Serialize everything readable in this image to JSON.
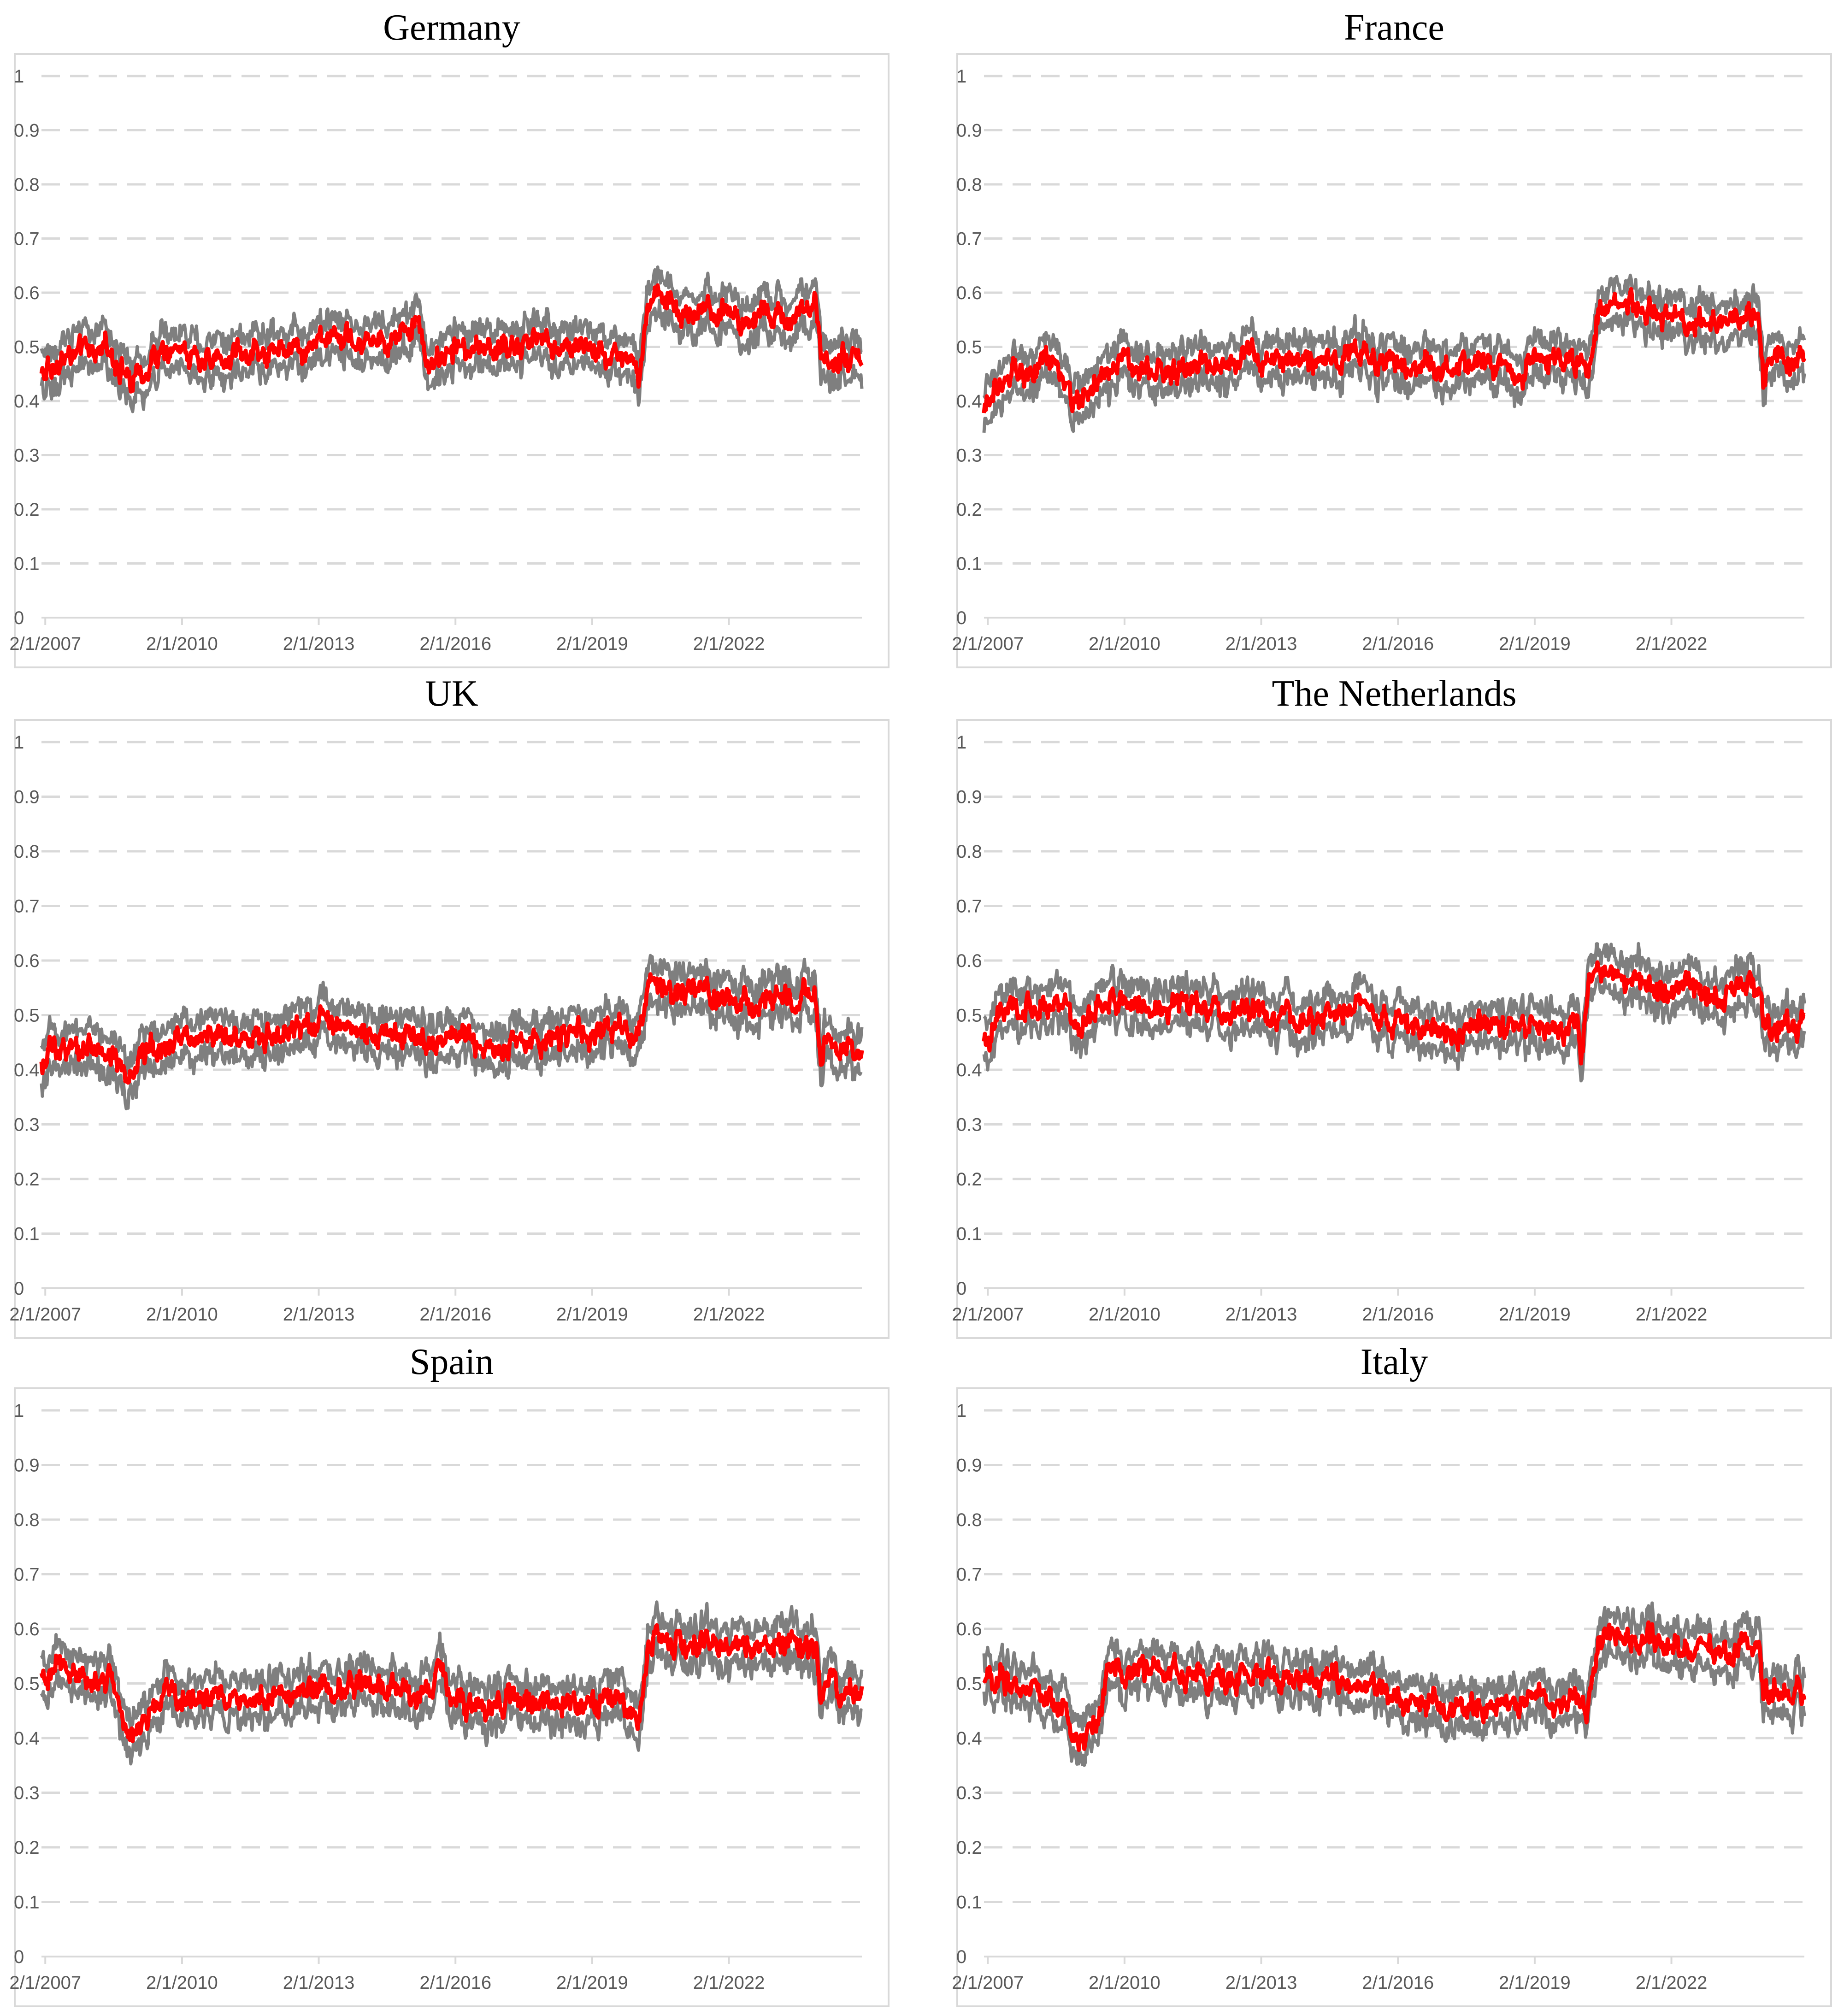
{
  "colors": {
    "band": "#7f7f7f",
    "mean": "#ff0000",
    "grid": "#d9d9d9",
    "tick": "#595959"
  },
  "chart_data": [
    {
      "type": "line",
      "title": "Germany",
      "y_ticks": [
        "0",
        "0.1",
        "0.2",
        "0.3",
        "0.4",
        "0.5",
        "0.6",
        "0.7",
        "0.8",
        "0.9",
        "1"
      ],
      "x_ticks": [
        "2/1/2007",
        "2/1/2010",
        "2/1/2013",
        "2/1/2016",
        "2/1/2019",
        "2/1/2022"
      ],
      "x_range": [
        2007.0,
        2025.0
      ],
      "ylim": [
        0,
        1
      ],
      "grid": "horizontal dashed",
      "series": [
        {
          "x": [
            2007.0,
            2007.5,
            2008.0,
            2008.5,
            2009.0,
            2009.5,
            2010.0,
            2010.5,
            2011.0,
            2011.5,
            2012.0,
            2012.5,
            2013.0,
            2013.5,
            2014.0,
            2014.5,
            2015.0,
            2015.2,
            2015.5,
            2016.0,
            2016.5,
            2017.0,
            2017.5,
            2018.0,
            2018.5,
            2019.0,
            2019.5,
            2020.0,
            2020.1,
            2020.3,
            2020.6,
            2021.0,
            2021.5,
            2022.0,
            2022.5,
            2023.0,
            2023.5,
            2024.0,
            2024.1,
            2024.2,
            2024.5,
            2025.0
          ],
          "values": [
            0.45,
            0.48,
            0.49,
            0.5,
            0.43,
            0.48,
            0.49,
            0.48,
            0.48,
            0.49,
            0.49,
            0.5,
            0.51,
            0.52,
            0.51,
            0.52,
            0.53,
            0.55,
            0.47,
            0.5,
            0.49,
            0.5,
            0.5,
            0.51,
            0.5,
            0.5,
            0.49,
            0.47,
            0.44,
            0.56,
            0.58,
            0.57,
            0.57,
            0.56,
            0.55,
            0.56,
            0.56,
            0.57,
            0.49,
            0.48,
            0.48,
            0.48
          ]
        }
      ]
    },
    {
      "type": "line",
      "title": "France",
      "y_ticks": [
        "0",
        "0.1",
        "0.2",
        "0.3",
        "0.4",
        "0.5",
        "0.6",
        "0.7",
        "0.8",
        "0.9",
        "1"
      ],
      "x_ticks": [
        "2/1/2007",
        "2/1/2010",
        "2/1/2013",
        "2/1/2016",
        "2/1/2019",
        "2/1/2022"
      ],
      "x_range": [
        2007.0,
        2025.0
      ],
      "ylim": [
        0,
        1
      ],
      "grid": "horizontal dashed",
      "series": [
        {
          "x": [
            2007.0,
            2007.3,
            2007.7,
            2008.0,
            2008.5,
            2009.0,
            2009.3,
            2009.7,
            2010.0,
            2010.5,
            2011.0,
            2011.5,
            2012.0,
            2012.5,
            2013.0,
            2013.5,
            2014.0,
            2014.5,
            2015.0,
            2015.3,
            2015.6,
            2016.0,
            2016.5,
            2017.0,
            2017.5,
            2018.0,
            2018.5,
            2019.0,
            2019.5,
            2020.0,
            2020.2,
            2020.5,
            2021.0,
            2021.5,
            2022.0,
            2022.5,
            2023.0,
            2023.5,
            2024.0,
            2024.1,
            2024.2,
            2024.5,
            2025.0
          ],
          "values": [
            0.38,
            0.43,
            0.45,
            0.45,
            0.47,
            0.39,
            0.42,
            0.46,
            0.47,
            0.46,
            0.45,
            0.46,
            0.46,
            0.47,
            0.48,
            0.47,
            0.47,
            0.48,
            0.48,
            0.5,
            0.46,
            0.47,
            0.46,
            0.46,
            0.47,
            0.47,
            0.46,
            0.47,
            0.48,
            0.46,
            0.45,
            0.58,
            0.58,
            0.57,
            0.56,
            0.55,
            0.55,
            0.55,
            0.56,
            0.43,
            0.48,
            0.48,
            0.48
          ]
        }
      ]
    },
    {
      "type": "line",
      "title": "UK",
      "y_ticks": [
        "0",
        "0.1",
        "0.2",
        "0.3",
        "0.4",
        "0.5",
        "0.6",
        "0.7",
        "0.8",
        "0.9",
        "1"
      ],
      "x_ticks": [
        "2/1/2007",
        "2/1/2010",
        "2/1/2013",
        "2/1/2016",
        "2/1/2019",
        "2/1/2022"
      ],
      "x_range": [
        2007.0,
        2025.0
      ],
      "ylim": [
        0,
        1
      ],
      "grid": "horizontal dashed",
      "series": [
        {
          "x": [
            2007.0,
            2007.3,
            2008.0,
            2008.5,
            2008.9,
            2009.3,
            2010.0,
            2010.5,
            2011.0,
            2011.5,
            2012.0,
            2012.5,
            2013.0,
            2013.5,
            2014.0,
            2014.5,
            2015.0,
            2015.5,
            2016.0,
            2016.5,
            2017.0,
            2017.5,
            2018.0,
            2018.5,
            2019.0,
            2019.5,
            2020.0,
            2020.1,
            2020.3,
            2020.6,
            2021.0,
            2021.5,
            2022.0,
            2022.5,
            2023.0,
            2023.5,
            2024.0,
            2024.1,
            2024.2,
            2024.5,
            2025.0
          ],
          "values": [
            0.4,
            0.44,
            0.44,
            0.44,
            0.38,
            0.43,
            0.46,
            0.46,
            0.46,
            0.46,
            0.46,
            0.47,
            0.48,
            0.47,
            0.47,
            0.47,
            0.45,
            0.46,
            0.46,
            0.45,
            0.44,
            0.45,
            0.45,
            0.46,
            0.47,
            0.47,
            0.47,
            0.45,
            0.55,
            0.56,
            0.55,
            0.54,
            0.53,
            0.52,
            0.53,
            0.53,
            0.53,
            0.41,
            0.46,
            0.44,
            0.43
          ]
        }
      ]
    },
    {
      "type": "line",
      "title": "The Netherlands",
      "y_ticks": [
        "0",
        "0.1",
        "0.2",
        "0.3",
        "0.4",
        "0.5",
        "0.6",
        "0.7",
        "0.8",
        "0.9",
        "1"
      ],
      "x_ticks": [
        "2/1/2007",
        "2/1/2010",
        "2/1/2013",
        "2/1/2016",
        "2/1/2019",
        "2/1/2022"
      ],
      "x_range": [
        2007.0,
        2025.0
      ],
      "ylim": [
        0,
        1
      ],
      "grid": "horizontal dashed",
      "series": [
        {
          "x": [
            2007.0,
            2007.3,
            2008.0,
            2008.8,
            2009.0,
            2009.5,
            2010.0,
            2010.5,
            2011.0,
            2011.5,
            2012.0,
            2012.5,
            2013.0,
            2013.5,
            2014.0,
            2014.5,
            2015.0,
            2015.3,
            2015.6,
            2016.0,
            2016.5,
            2017.0,
            2017.5,
            2018.0,
            2018.5,
            2019.0,
            2019.5,
            2020.0,
            2020.1,
            2020.3,
            2020.6,
            2021.0,
            2021.5,
            2022.0,
            2022.5,
            2023.0,
            2023.5,
            2024.0,
            2024.1,
            2024.2,
            2024.5,
            2025.0
          ],
          "values": [
            0.44,
            0.5,
            0.51,
            0.52,
            0.47,
            0.52,
            0.53,
            0.51,
            0.52,
            0.51,
            0.51,
            0.5,
            0.51,
            0.5,
            0.49,
            0.5,
            0.51,
            0.52,
            0.48,
            0.49,
            0.48,
            0.47,
            0.47,
            0.48,
            0.47,
            0.48,
            0.47,
            0.46,
            0.43,
            0.58,
            0.57,
            0.56,
            0.55,
            0.54,
            0.54,
            0.54,
            0.55,
            0.55,
            0.48,
            0.48,
            0.48,
            0.48
          ]
        }
      ]
    },
    {
      "type": "line",
      "title": "Spain",
      "y_ticks": [
        "0",
        "0.1",
        "0.2",
        "0.3",
        "0.4",
        "0.5",
        "0.6",
        "0.7",
        "0.8",
        "0.9",
        "1"
      ],
      "x_ticks": [
        "2/1/2007",
        "2/1/2010",
        "2/1/2013",
        "2/1/2016",
        "2/1/2019",
        "2/1/2022"
      ],
      "x_range": [
        2007.0,
        2025.0
      ],
      "ylim": [
        0,
        1
      ],
      "grid": "horizontal dashed",
      "series": [
        {
          "x": [
            2007.0,
            2007.5,
            2008.0,
            2008.5,
            2008.9,
            2009.3,
            2009.7,
            2010.0,
            2010.5,
            2011.0,
            2011.5,
            2012.0,
            2012.5,
            2013.0,
            2013.5,
            2014.0,
            2014.5,
            2015.0,
            2015.5,
            2015.8,
            2016.1,
            2016.5,
            2017.0,
            2017.5,
            2018.0,
            2018.5,
            2019.0,
            2019.5,
            2020.0,
            2020.1,
            2020.3,
            2020.6,
            2021.0,
            2021.5,
            2022.0,
            2022.5,
            2023.0,
            2023.5,
            2024.0,
            2024.1,
            2024.3,
            2024.6,
            2025.0
          ],
          "values": [
            0.51,
            0.52,
            0.51,
            0.51,
            0.41,
            0.44,
            0.5,
            0.48,
            0.48,
            0.47,
            0.47,
            0.48,
            0.48,
            0.5,
            0.49,
            0.49,
            0.48,
            0.49,
            0.48,
            0.53,
            0.46,
            0.47,
            0.46,
            0.47,
            0.46,
            0.46,
            0.47,
            0.46,
            0.45,
            0.42,
            0.57,
            0.58,
            0.57,
            0.57,
            0.56,
            0.57,
            0.57,
            0.57,
            0.57,
            0.46,
            0.51,
            0.49,
            0.48
          ]
        }
      ]
    },
    {
      "type": "line",
      "title": "Italy",
      "y_ticks": [
        "0",
        "0.1",
        "0.2",
        "0.3",
        "0.4",
        "0.5",
        "0.6",
        "0.7",
        "0.8",
        "0.9",
        "1"
      ],
      "x_ticks": [
        "2/1/2007",
        "2/1/2010",
        "2/1/2013",
        "2/1/2016",
        "2/1/2019",
        "2/1/2022"
      ],
      "x_range": [
        2007.0,
        2025.0
      ],
      "ylim": [
        0,
        1
      ],
      "grid": "horizontal dashed",
      "series": [
        {
          "x": [
            2007.0,
            2007.5,
            2008.0,
            2008.5,
            2008.8,
            2009.0,
            2009.2,
            2009.5,
            2009.8,
            2010.0,
            2010.5,
            2011.0,
            2011.5,
            2012.0,
            2012.5,
            2013.0,
            2013.5,
            2014.0,
            2014.5,
            2015.0,
            2015.5,
            2016.0,
            2016.5,
            2017.0,
            2017.5,
            2018.0,
            2018.5,
            2019.0,
            2019.5,
            2020.0,
            2020.2,
            2020.5,
            2021.0,
            2021.5,
            2022.0,
            2022.5,
            2023.0,
            2023.5,
            2024.0,
            2024.1,
            2024.3,
            2024.6,
            2025.0
          ],
          "values": [
            0.5,
            0.51,
            0.49,
            0.48,
            0.47,
            0.42,
            0.39,
            0.43,
            0.56,
            0.52,
            0.52,
            0.52,
            0.51,
            0.5,
            0.51,
            0.53,
            0.5,
            0.5,
            0.51,
            0.5,
            0.5,
            0.48,
            0.47,
            0.46,
            0.46,
            0.46,
            0.46,
            0.46,
            0.47,
            0.46,
            0.45,
            0.58,
            0.59,
            0.58,
            0.57,
            0.56,
            0.56,
            0.56,
            0.56,
            0.46,
            0.49,
            0.48,
            0.48
          ]
        }
      ]
    }
  ]
}
